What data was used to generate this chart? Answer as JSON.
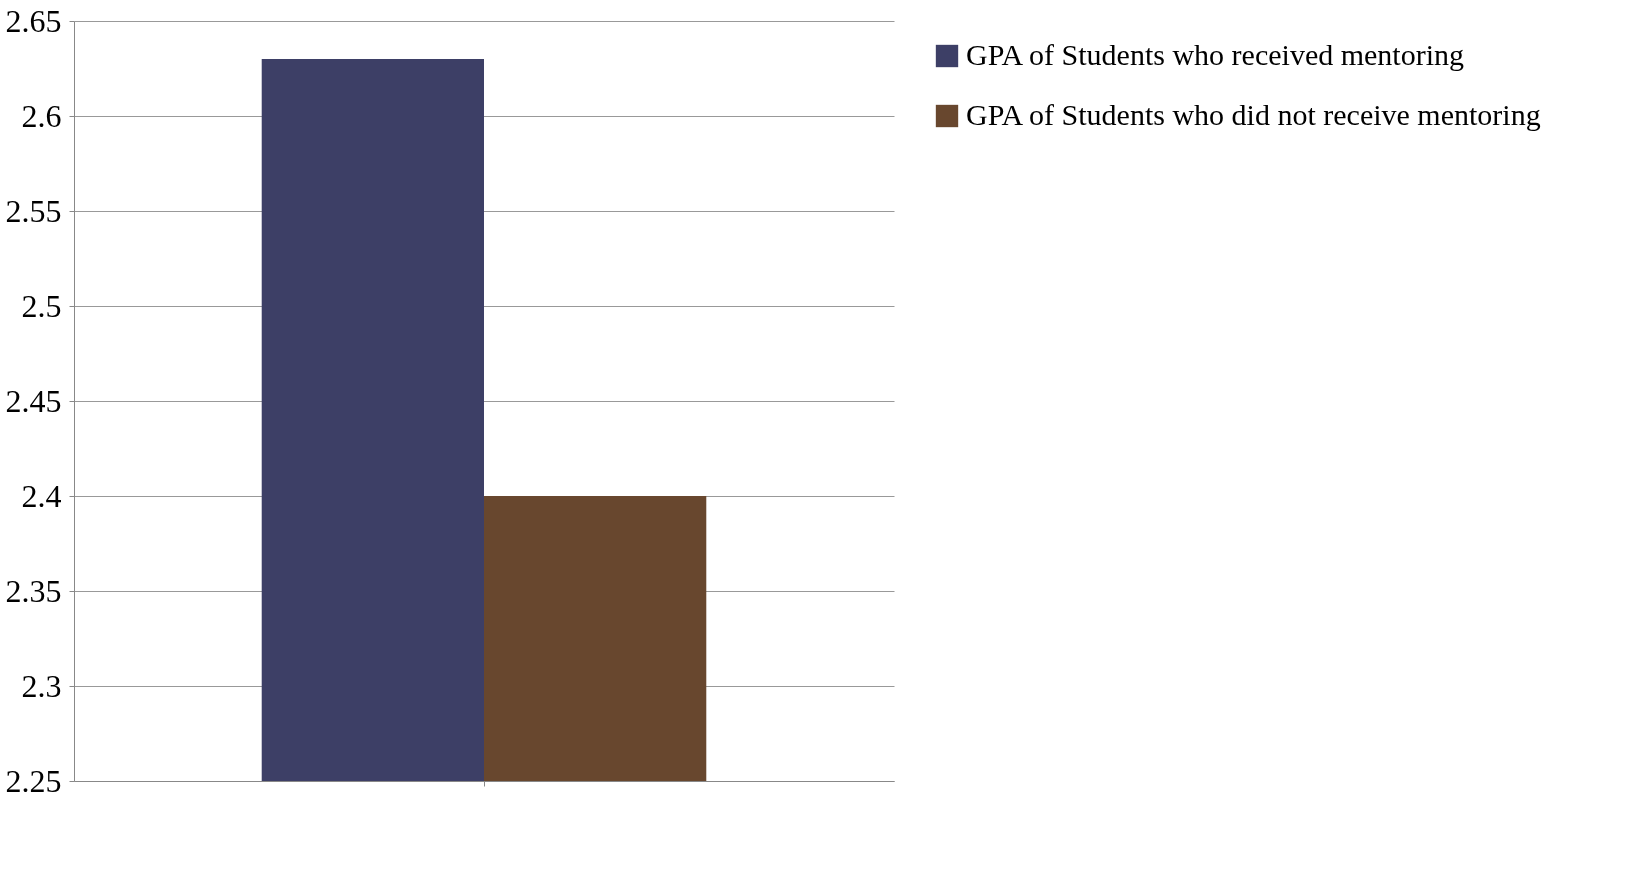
{
  "chart_data": {
    "type": "bar",
    "categories": [
      null
    ],
    "series": [
      {
        "name": "GPA of Students who received mentoring",
        "color": "#3d3f66",
        "values": [
          2.63
        ]
      },
      {
        "name": "GPA of Students who did not receive mentoring",
        "color": "#68472e",
        "values": [
          2.4
        ]
      }
    ],
    "ylim": [
      2.25,
      2.65
    ],
    "yticks": [
      2.25,
      2.3,
      2.35,
      2.4,
      2.45,
      2.5,
      2.55,
      2.6,
      2.65
    ],
    "grid": "y",
    "legend": "right"
  }
}
